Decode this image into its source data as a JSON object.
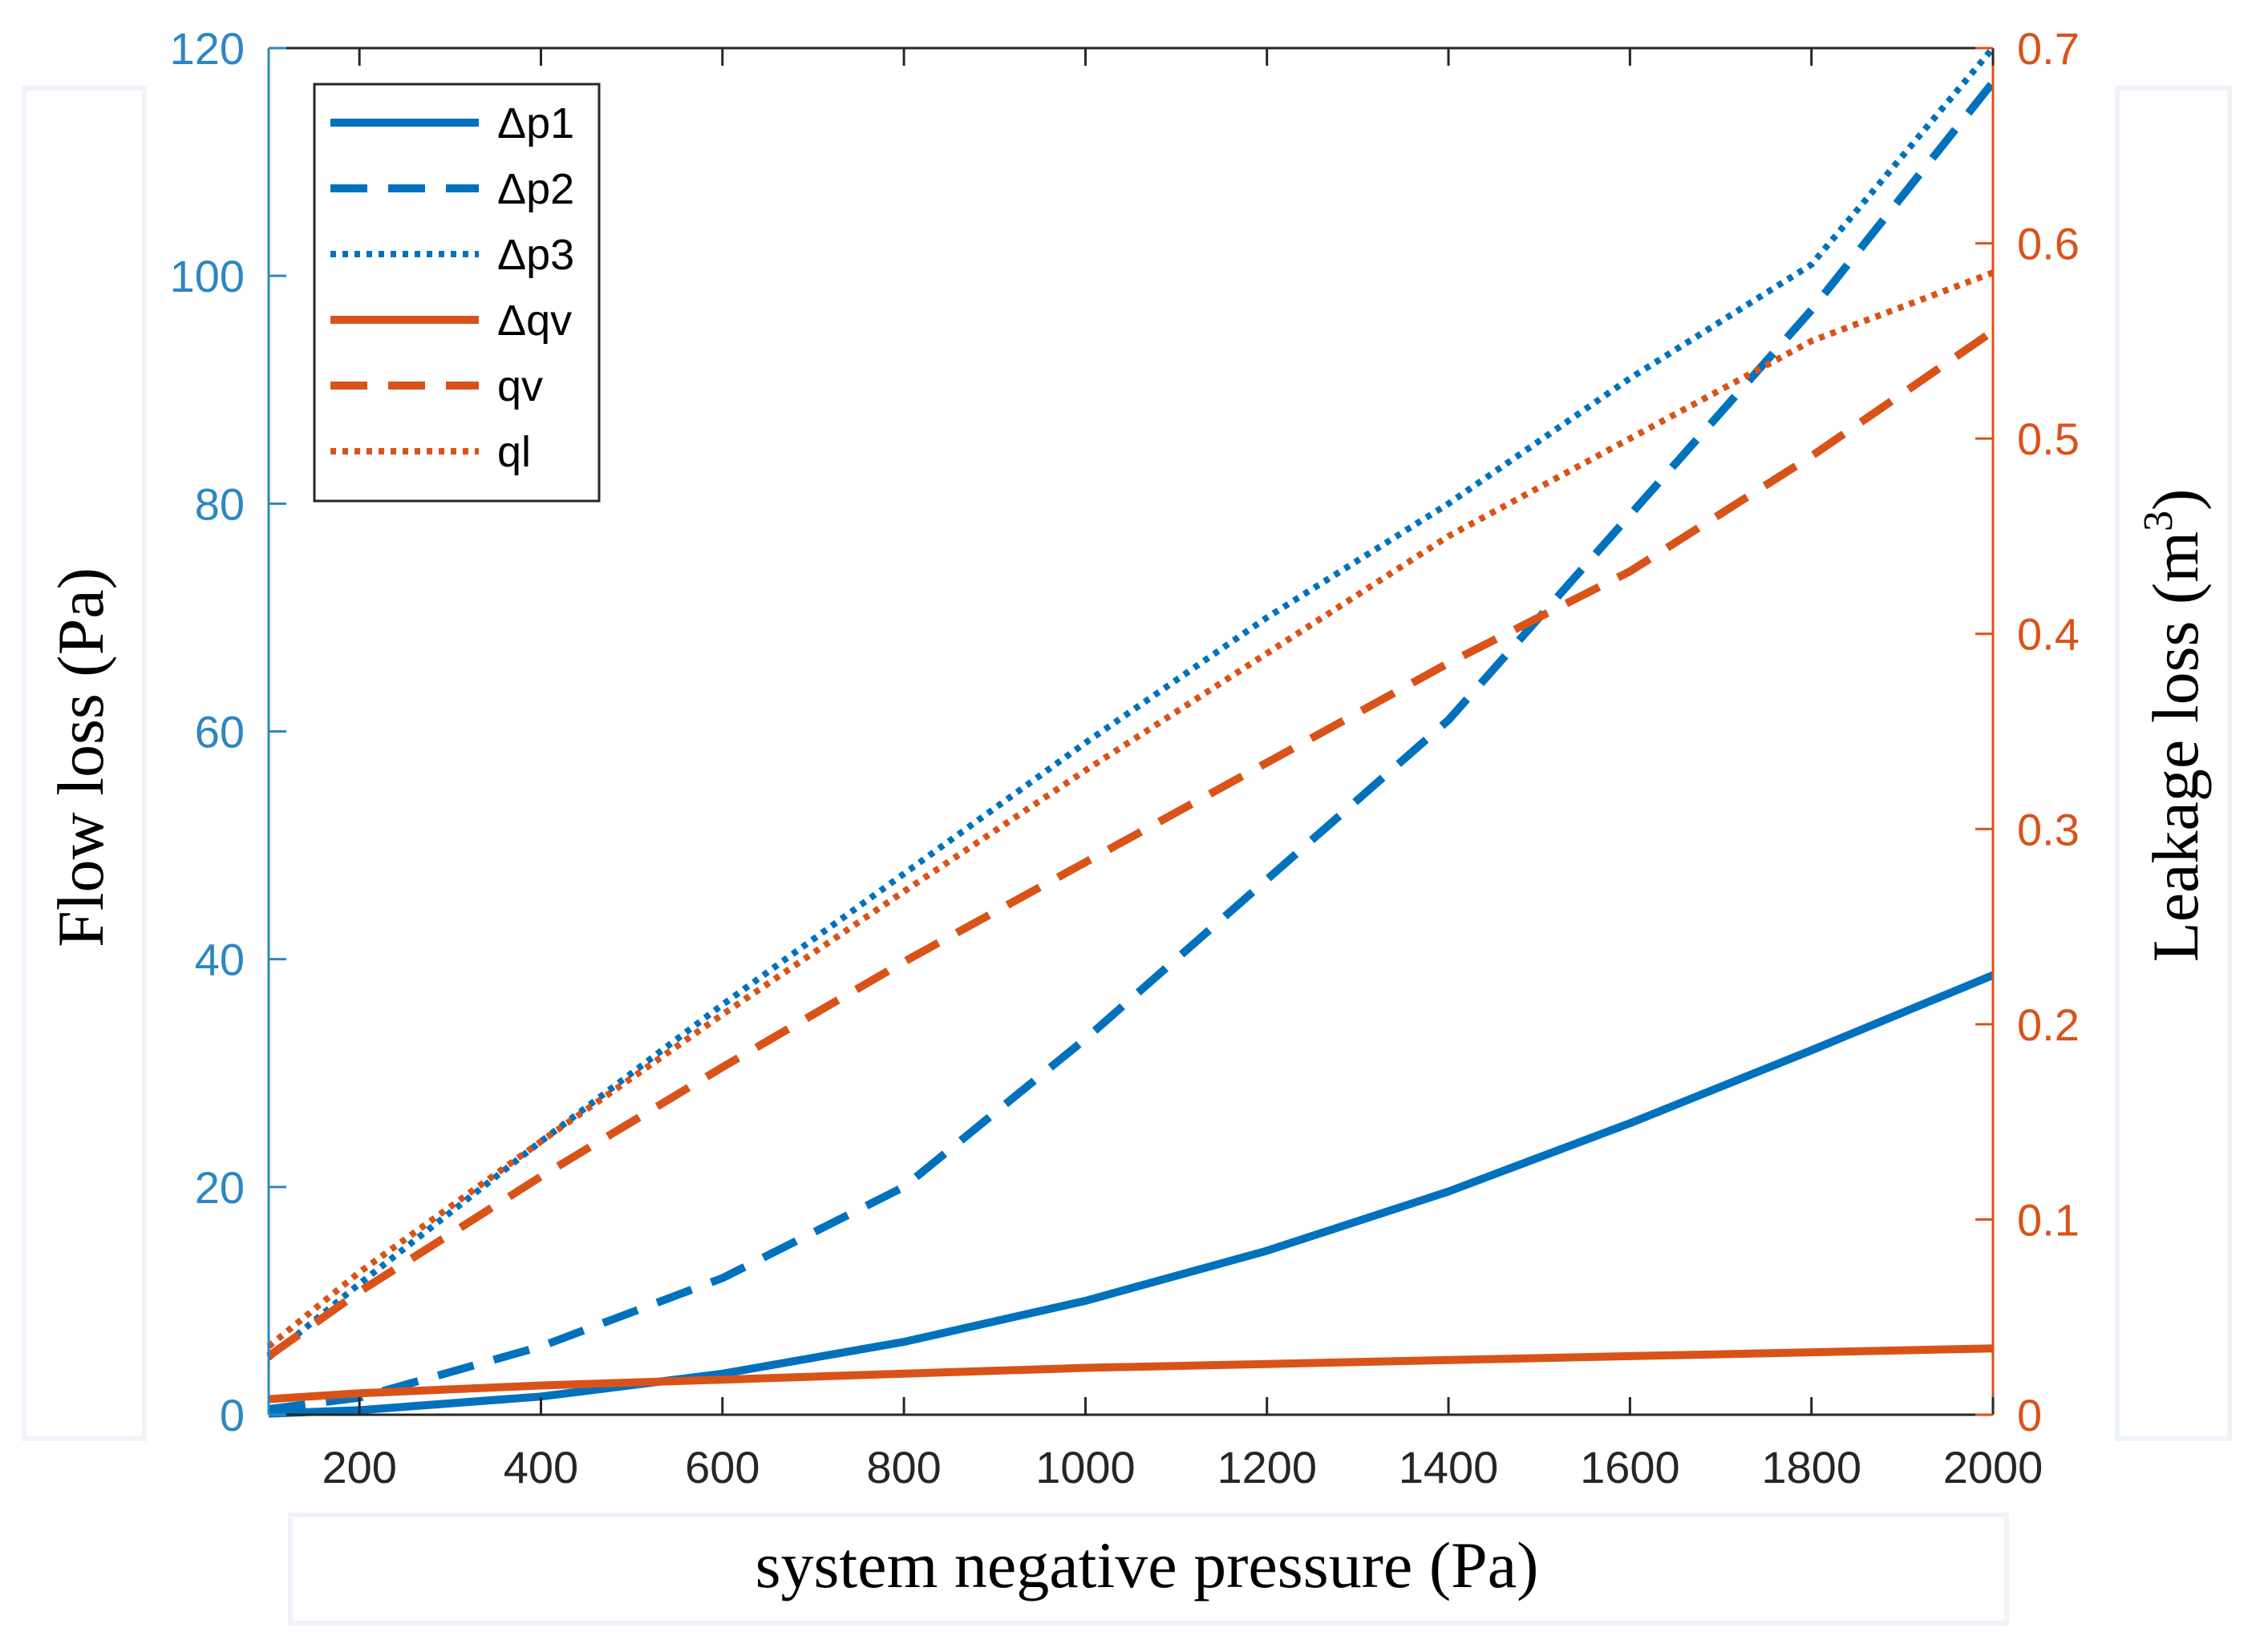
{
  "chart_data": {
    "type": "line",
    "title": "",
    "xlabel": "system negative pressure (Pa)",
    "ylabel_left": "Flow loss  (Pa)",
    "ylabel_right_base": "Leakage loss (m",
    "ylabel_right_sup": "3",
    "ylabel_right_close": ")",
    "xlim": [
      100,
      2000
    ],
    "ylim_left": [
      0,
      120
    ],
    "ylim_right": [
      0,
      0.7
    ],
    "x_ticks": [
      200,
      400,
      600,
      800,
      1000,
      1200,
      1400,
      1600,
      1800,
      2000
    ],
    "x_tick_labels": [
      "200",
      "400",
      "600",
      "800",
      "1000",
      "1200",
      "1400",
      "1600",
      "1800",
      "2000"
    ],
    "y_left_ticks": [
      0,
      20,
      40,
      60,
      80,
      100,
      120
    ],
    "y_left_tick_labels": [
      "0",
      "20",
      "40",
      "60",
      "80",
      "100",
      "120"
    ],
    "y_right_ticks": [
      0,
      0.1,
      0.2,
      0.3,
      0.4,
      0.5,
      0.6,
      0.7
    ],
    "y_right_tick_labels": [
      "0",
      "0.1",
      "0.2",
      "0.3",
      "0.4",
      "0.5",
      "0.6",
      "0.7"
    ],
    "legend_position": "top-left",
    "grid": false,
    "colors": {
      "blue": "#1f77b4",
      "orange": "#d95319",
      "axis_left": "#2e86c1",
      "axis_right": "#d95319"
    },
    "series": [
      {
        "name": "Δp1",
        "axis": "left",
        "color": "#0072bd",
        "dash": "solid",
        "x": [
          100,
          200,
          400,
          600,
          800,
          1000,
          1200,
          1400,
          1600,
          1800,
          2000
        ],
        "y": [
          0.1,
          0.4,
          1.6,
          3.6,
          6.4,
          10.0,
          14.4,
          19.6,
          25.6,
          32.0,
          38.6
        ]
      },
      {
        "name": "Δp2",
        "axis": "left",
        "color": "#0072bd",
        "dash": "dashed",
        "x": [
          100,
          200,
          400,
          600,
          800,
          1000,
          1200,
          1400,
          1600,
          1800,
          2000
        ],
        "y": [
          0.5,
          1.5,
          6.0,
          12.0,
          20.0,
          33.0,
          47.0,
          61.0,
          79.0,
          97.0,
          117.0
        ]
      },
      {
        "name": "Δp3",
        "axis": "left",
        "color": "#0072bd",
        "dash": "dotted",
        "x": [
          100,
          200,
          400,
          600,
          800,
          1000,
          1200,
          1400,
          1600,
          1800,
          2000
        ],
        "y": [
          5.0,
          11.5,
          24.0,
          36.0,
          47.5,
          59.0,
          70.0,
          80.0,
          91.0,
          101.0,
          120.0
        ]
      },
      {
        "name": "Δqv",
        "axis": "right",
        "color": "#d95319",
        "dash": "solid",
        "x": [
          100,
          200,
          400,
          600,
          800,
          1000,
          1200,
          1400,
          1600,
          1800,
          2000
        ],
        "y": [
          0.008,
          0.011,
          0.015,
          0.018,
          0.021,
          0.024,
          0.026,
          0.028,
          0.03,
          0.032,
          0.034
        ]
      },
      {
        "name": "qv",
        "axis": "right",
        "color": "#d95319",
        "dash": "dashed",
        "x": [
          100,
          200,
          400,
          600,
          800,
          1000,
          1200,
          1400,
          1600,
          1800,
          2000
        ],
        "y": [
          0.03,
          0.063,
          0.122,
          0.178,
          0.232,
          0.283,
          0.334,
          0.385,
          0.432,
          0.491,
          0.555
        ]
      },
      {
        "name": "ql",
        "axis": "right",
        "color": "#d95319",
        "dash": "dotted",
        "x": [
          100,
          200,
          400,
          600,
          800,
          1000,
          1200,
          1400,
          1600,
          1800,
          2000
        ],
        "y": [
          0.035,
          0.073,
          0.14,
          0.205,
          0.268,
          0.33,
          0.39,
          0.45,
          0.5,
          0.55,
          0.585
        ]
      }
    ]
  }
}
